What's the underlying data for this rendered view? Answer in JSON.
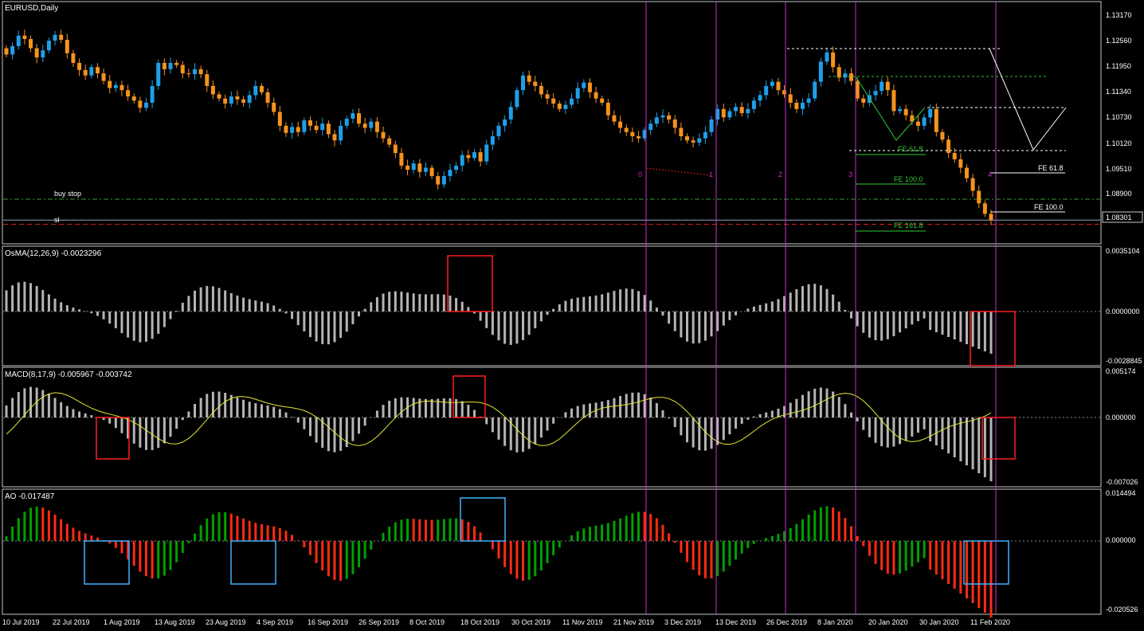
{
  "window": {
    "symbol_label": "EURUSD,Daily",
    "current_price": "1.08301"
  },
  "colors": {
    "background": "#000000",
    "frame": "#c8c8c8",
    "bull_candle": "#1e9fe8",
    "bear_candle": "#f5931e",
    "histogram": "#b4b4b4",
    "signal": "#e6e632",
    "ao_up": "#00a000",
    "ao_down": "#ff2a14",
    "vline": "#c832c8",
    "box_red": "#ff1e1e",
    "box_blue": "#3cb4ff",
    "fib_green": "#32c832",
    "buy_stop": "#32a032",
    "sl": "#dc1e1e"
  },
  "chart_data": [
    {
      "panel": "price",
      "type": "candlestick",
      "label": "EURUSD,Daily",
      "y_ticks": [
        "1.13170",
        "1.12560",
        "1.11950",
        "1.11340",
        "1.10730",
        "1.10120",
        "1.09510",
        "1.08900"
      ],
      "ylim": [
        1.0805,
        1.1327
      ],
      "current_price": 1.08301,
      "close_series": [
        1.1225,
        1.1245,
        1.127,
        1.1262,
        1.124,
        1.1218,
        1.1235,
        1.1258,
        1.1272,
        1.126,
        1.1228,
        1.1205,
        1.1188,
        1.1175,
        1.1195,
        1.118,
        1.1162,
        1.1145,
        1.1152,
        1.114,
        1.1125,
        1.1115,
        1.1098,
        1.111,
        1.115,
        1.1205,
        1.119,
        1.1205,
        1.12,
        1.118,
        1.1178,
        1.119,
        1.1178,
        1.115,
        1.113,
        1.112,
        1.1108,
        1.1125,
        1.1118,
        1.111,
        1.1128,
        1.115,
        1.1135,
        1.111,
        1.1088,
        1.1055,
        1.1038,
        1.1052,
        1.104,
        1.1068,
        1.1055,
        1.1045,
        1.106,
        1.1035,
        1.102,
        1.1055,
        1.1072,
        1.1085,
        1.106,
        1.105,
        1.1065,
        1.104,
        1.1025,
        1.101,
        1.099,
        1.096,
        1.095,
        1.0965,
        1.0945,
        1.0955,
        1.0935,
        1.0915,
        1.0935,
        1.095,
        1.096,
        1.0985,
        1.0978,
        1.0992,
        1.097,
        1.101,
        1.103,
        1.1055,
        1.107,
        1.11,
        1.114,
        1.1175,
        1.116,
        1.115,
        1.113,
        1.112,
        1.1108,
        1.1095,
        1.1105,
        1.112,
        1.1145,
        1.1158,
        1.1135,
        1.112,
        1.111,
        1.108,
        1.1065,
        1.105,
        1.104,
        1.103,
        1.1025,
        1.1045,
        1.106,
        1.1075,
        1.108,
        1.107,
        1.105,
        1.103,
        1.102,
        1.1015,
        1.1025,
        1.104,
        1.107,
        1.1095,
        1.1075,
        1.109,
        1.11,
        1.1085,
        1.1095,
        1.1115,
        1.1128,
        1.115,
        1.116,
        1.114,
        1.113,
        1.111,
        1.1095,
        1.111,
        1.112,
        1.116,
        1.1208,
        1.123,
        1.1195,
        1.117,
        1.118,
        1.1162,
        1.112,
        1.111,
        1.1128,
        1.1138,
        1.116,
        1.114,
        1.109,
        1.1095,
        1.108,
        1.1065,
        1.1055,
        1.1075,
        1.1095,
        1.104,
        1.1022,
        1.099,
        1.0975,
        1.0955,
        1.093,
        1.09,
        1.087,
        1.0845,
        1.083
      ],
      "open_series_start": 1.124,
      "x_ticks": [
        "10 Jul 2019",
        "22 Jul 2019",
        "1 Aug 2019",
        "13 Aug 2019",
        "23 Aug 2019",
        "4 Sep 2019",
        "16 Sep 2019",
        "26 Sep 2019",
        "8 Oct 2019",
        "18 Oct 2019",
        "30 Oct 2019",
        "11 Nov 2019",
        "21 Nov 2019",
        "3 Dec 2019",
        "13 Dec 2019",
        "26 Dec 2019",
        "8 Jan 2020",
        "20 Jan 2020",
        "30 Jan 2020",
        "11 Feb 2020"
      ],
      "annotations": {
        "buy_stop": {
          "label": "buy stop",
          "price": 1.088
        },
        "sl": {
          "label": "sl",
          "price": 1.083
        },
        "stop_red": {
          "price": 1.082
        },
        "wave_labels": [
          "0",
          "1",
          "2",
          "3",
          "4"
        ],
        "fe_green": [
          {
            "label": "FE 61.8",
            "price": 1.1003
          },
          {
            "label": "FE 100.0",
            "price": 1.0918
          },
          {
            "label": "FE 161.8",
            "price": 1.0812
          }
        ],
        "fe_white": [
          {
            "label": "FE 61.8",
            "price": 1.0945
          },
          {
            "label": "FE 100.0",
            "price": 1.0838
          }
        ]
      }
    },
    {
      "panel": "osma",
      "type": "bar",
      "label": "OsMA(12,26,9) -0.0023296",
      "y_ticks": [
        "0.0035104",
        "0.0000000",
        "-0.0028845"
      ],
      "ylim": [
        -0.0031,
        0.0036
      ]
    },
    {
      "panel": "macd",
      "type": "bar",
      "label": "MACD(8,17,9) -0.005967 -0.003742",
      "y_ticks": [
        "0.005174",
        "0.000000",
        "-0.007026"
      ],
      "ylim": [
        -0.007,
        0.006
      ]
    },
    {
      "panel": "ao",
      "type": "bar",
      "label": "AO -0.017487",
      "y_ticks": [
        "0.014494",
        "0.000000",
        "-0.020526"
      ],
      "ylim": [
        -0.021,
        0.0155
      ]
    }
  ]
}
